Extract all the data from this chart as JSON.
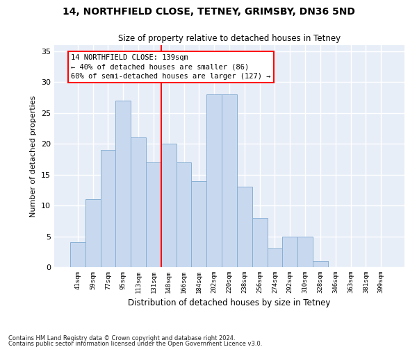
{
  "title1": "14, NORTHFIELD CLOSE, TETNEY, GRIMSBY, DN36 5ND",
  "title2": "Size of property relative to detached houses in Tetney",
  "xlabel": "Distribution of detached houses by size in Tetney",
  "ylabel": "Number of detached properties",
  "footer1": "Contains HM Land Registry data © Crown copyright and database right 2024.",
  "footer2": "Contains public sector information licensed under the Open Government Licence v3.0.",
  "bin_labels": [
    "41sqm",
    "59sqm",
    "77sqm",
    "95sqm",
    "113sqm",
    "131sqm",
    "148sqm",
    "166sqm",
    "184sqm",
    "202sqm",
    "220sqm",
    "238sqm",
    "256sqm",
    "274sqm",
    "292sqm",
    "310sqm",
    "328sqm",
    "346sqm",
    "363sqm",
    "381sqm",
    "399sqm"
  ],
  "bar_values": [
    4,
    11,
    19,
    27,
    21,
    17,
    20,
    17,
    14,
    28,
    28,
    13,
    8,
    3,
    5,
    5,
    1,
    0,
    0,
    0,
    0
  ],
  "bar_color": "#c8d9ef",
  "bar_edgecolor": "#88afd4",
  "annotation_text": "14 NORTHFIELD CLOSE: 139sqm\n← 40% of detached houses are smaller (86)\n60% of semi-detached houses are larger (127) →",
  "annotation_box_edgecolor": "red",
  "vline_color": "red",
  "vline_x": 5.5,
  "background_color": "#e8eef8",
  "ylim": [
    0,
    36
  ],
  "yticks": [
    0,
    5,
    10,
    15,
    20,
    25,
    30,
    35
  ]
}
